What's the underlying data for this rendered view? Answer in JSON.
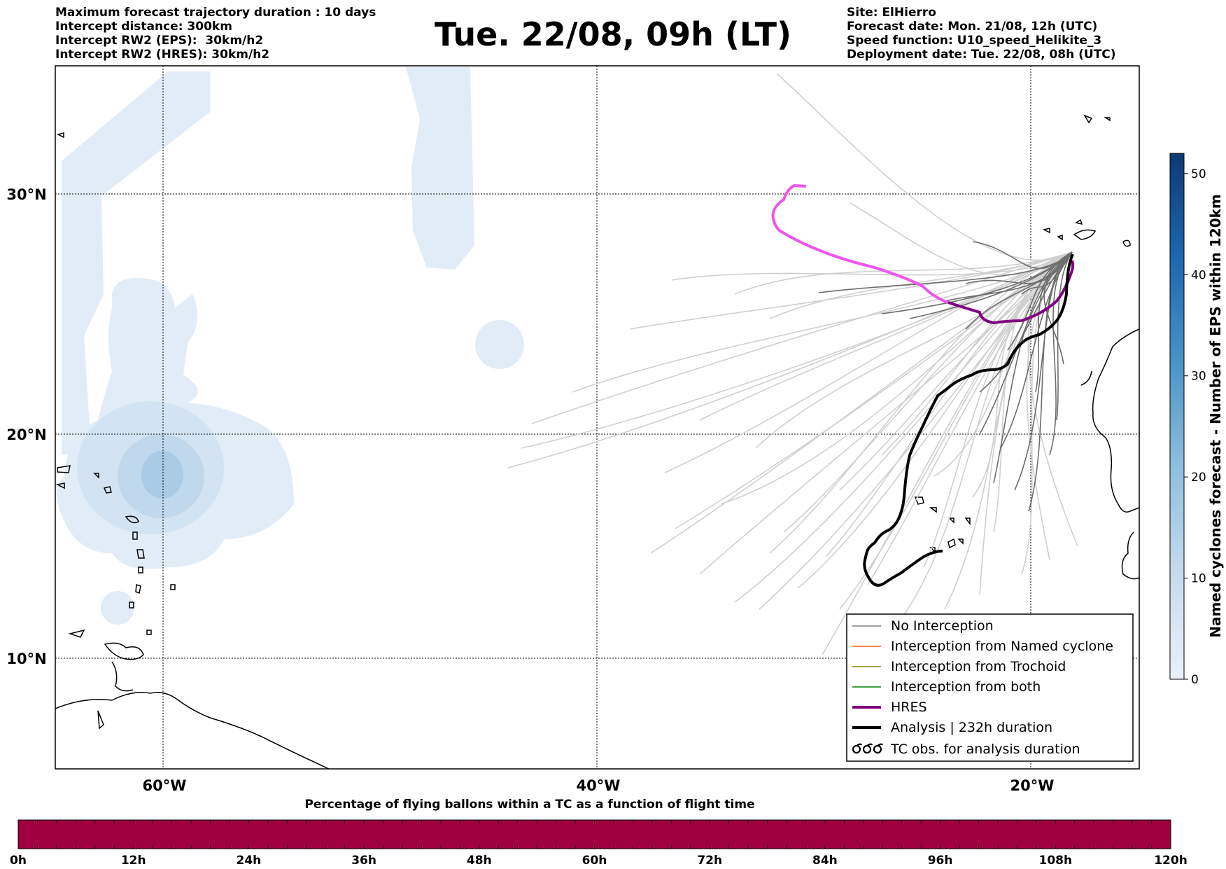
{
  "header": {
    "left_lines": [
      "Maximum forecast trajectory duration : 10 days",
      "Intercept distance: 300km",
      "Intercept RW2 (EPS):  30km/h2",
      "Intercept RW2 (HRES): 30km/h2"
    ],
    "title": "Tue. 22/08, 09h (LT)",
    "right_lines": [
      "Site: ElHierro",
      "Forecast date: Mon. 21/08, 12h (UTC)",
      "Speed function: U10_speed_Helikite_3",
      "Deployment date: Tue. 22/08, 08h (UTC)"
    ]
  },
  "map": {
    "lat_labels": [
      "30°N",
      "20°N",
      "10°N"
    ],
    "lon_labels": [
      "60°W",
      "40°W",
      "20°W"
    ]
  },
  "legend": {
    "items": [
      {
        "label": "No Interception",
        "color": "#808080",
        "style": "thin"
      },
      {
        "label": "Interception from Named cyclone",
        "color": "#ff5a1e",
        "style": "thin"
      },
      {
        "label": "Interception from Trochoid",
        "color": "#808000",
        "style": "thin"
      },
      {
        "label": "Interception from both",
        "color": "#008000",
        "style": "thin"
      },
      {
        "label": "HRES",
        "color": "#800080",
        "style": "thick"
      },
      {
        "label": "Analysis | 232h duration",
        "color": "#000000",
        "style": "thick"
      },
      {
        "label": "TC obs. for analysis duration",
        "color": "#000000",
        "style": "symbol"
      }
    ]
  },
  "colorbar": {
    "label": "Named cyclones forecast - Number of EPS within 120km",
    "ticks": [
      "0",
      "10",
      "20",
      "30",
      "40",
      "50"
    ],
    "min_color": "#eaf1fa",
    "max_color": "#0c3a75"
  },
  "timebar": {
    "title": "Percentage of flying ballons within a TC as a function of flight time",
    "ticks": [
      "0h",
      "12h",
      "24h",
      "36h",
      "48h",
      "60h",
      "72h",
      "84h",
      "96h",
      "108h",
      "120h"
    ],
    "color": "#9e0040"
  },
  "colors": {
    "eps_track": "#cfcfcf",
    "eps_track_dark": "#6e6e6e",
    "hres_near": "#800080",
    "hres_far": "#ee55ee",
    "analysis": "#000000",
    "cyclone_fill": "#c8dcf0"
  }
}
